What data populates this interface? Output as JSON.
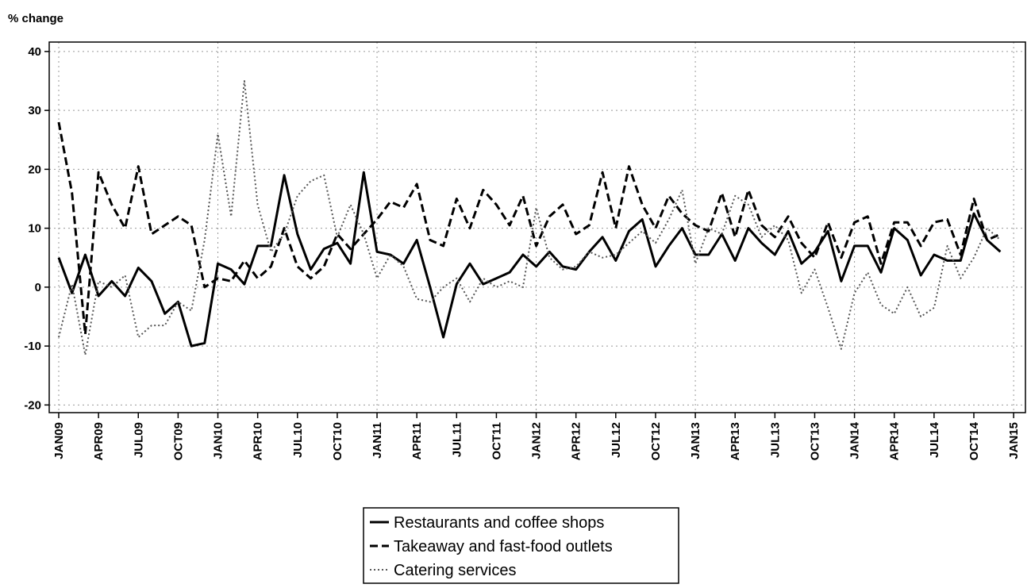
{
  "chart_data": {
    "type": "line",
    "ylabel": "% change",
    "categories": [
      "JAN09",
      null,
      null,
      "APR09",
      null,
      null,
      "JUL09",
      null,
      null,
      "OCT09",
      null,
      null,
      "JAN10",
      null,
      null,
      "APR10",
      null,
      null,
      "JUL10",
      null,
      null,
      "OCT10",
      null,
      null,
      "JAN11",
      null,
      null,
      "APR11",
      null,
      null,
      "JUL11",
      null,
      null,
      "OCT11",
      null,
      null,
      "JAN12",
      null,
      null,
      "APR12",
      null,
      null,
      "JUL12",
      null,
      null,
      "OCT12",
      null,
      null,
      "JAN13",
      null,
      null,
      "APR13",
      null,
      null,
      "JUL13",
      null,
      null,
      "OCT13",
      null,
      null,
      "JAN14",
      null,
      null,
      "APR14",
      null,
      null,
      "JUL14",
      null,
      null,
      "OCT14",
      null,
      null,
      "JAN15"
    ],
    "ylim": [
      -21.3,
      41.6
    ],
    "yticks": [
      -20,
      -10,
      0,
      10,
      20,
      30,
      40
    ],
    "grid": true,
    "legend": "bottom",
    "series": [
      {
        "name": "Restaurants and coffee shops",
        "color": "#000000",
        "linestyle": "solid",
        "values": [
          5,
          -1,
          5.5,
          -1.5,
          1,
          -1.5,
          3.3,
          1,
          -4.5,
          -2.5,
          -10,
          -9.5,
          4,
          3,
          0.5,
          7,
          7,
          19,
          9,
          3,
          6.5,
          7.5,
          4,
          19.5,
          6,
          5.5,
          4,
          8,
          0,
          -8.5,
          0.5,
          4,
          0.5,
          1.5,
          2.5,
          5.5,
          3.5,
          6,
          3.5,
          3,
          6,
          8.5,
          4.5,
          9.5,
          11.5,
          3.5,
          7,
          10,
          5.5,
          5.5,
          9,
          4.5,
          10,
          7.5,
          5.5,
          9.5,
          4,
          6,
          9.5,
          1,
          7,
          7,
          2.5,
          10,
          8,
          2,
          5.5,
          4.5,
          4.5,
          12.5,
          8,
          6,
          null
        ]
      },
      {
        "name": "Takeaway and fast-food outlets",
        "color": "#000000",
        "linestyle": "dashed",
        "values": [
          28,
          16,
          -8,
          19.5,
          14,
          10,
          20.5,
          9,
          10.5,
          12,
          10.5,
          0,
          1.5,
          1,
          4.5,
          1.5,
          3.5,
          10,
          3.5,
          1.5,
          3.5,
          9,
          6.5,
          9,
          11.5,
          14.5,
          13.5,
          17.5,
          8,
          7,
          15,
          10,
          16.5,
          14,
          10.5,
          15.5,
          7,
          12,
          14,
          9,
          10.5,
          19.5,
          10,
          20.5,
          14,
          10,
          15.5,
          12.5,
          10.5,
          9.5,
          16,
          8.5,
          16.5,
          10.5,
          8.5,
          12,
          7.5,
          5,
          11,
          5,
          11,
          12,
          4,
          11,
          11,
          7,
          11,
          11.5,
          5.5,
          15,
          8,
          9,
          null
        ]
      },
      {
        "name": "Catering services",
        "color": "#555555",
        "linestyle": "dotted",
        "values": [
          -8.5,
          0.5,
          -11.5,
          1,
          0,
          2,
          -8.5,
          -6.5,
          -6.5,
          -2.5,
          -4,
          8,
          26,
          12,
          35,
          14,
          6,
          9,
          15.5,
          18,
          19,
          8.5,
          14,
          9,
          1.5,
          5.5,
          3.5,
          -2,
          -2.5,
          0,
          1.5,
          -2.5,
          1.5,
          0,
          1,
          0,
          13.5,
          5,
          3,
          3.5,
          6,
          5,
          5.5,
          7.5,
          9.5,
          7.5,
          11.5,
          16.5,
          4,
          10,
          9,
          15.5,
          14,
          8.5,
          10.5,
          8,
          -1,
          3,
          -3.5,
          -10.5,
          -1,
          2.5,
          -3,
          -4.5,
          0,
          -5,
          -3.5,
          7,
          1.5,
          5,
          10,
          8,
          null
        ]
      }
    ]
  }
}
